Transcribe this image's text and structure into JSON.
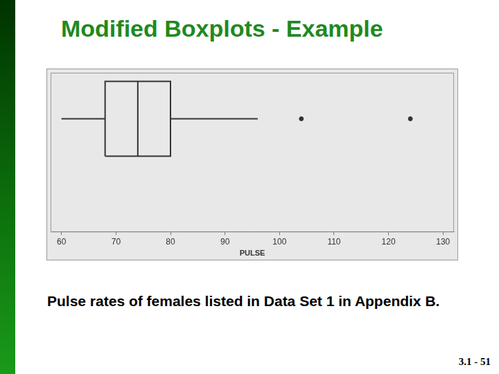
{
  "slide": {
    "title": "Modified Boxplots - Example",
    "caption": "Pulse rates of females listed in Data Set 1 in Appendix B.",
    "page_number": "3.1 - 51"
  },
  "chart_data": {
    "type": "boxplot",
    "orientation": "horizontal",
    "x_label": "PULSE",
    "whisker_low": 60,
    "q1": 68,
    "median": 74,
    "q3": 80,
    "whisker_high": 96,
    "outliers": [
      104,
      124
    ],
    "color": "#333333",
    "xlim": [
      58,
      132
    ],
    "xticks": [
      60,
      70,
      80,
      90,
      100,
      110,
      120,
      130
    ],
    "grid": false,
    "tick_labels": "x"
  }
}
